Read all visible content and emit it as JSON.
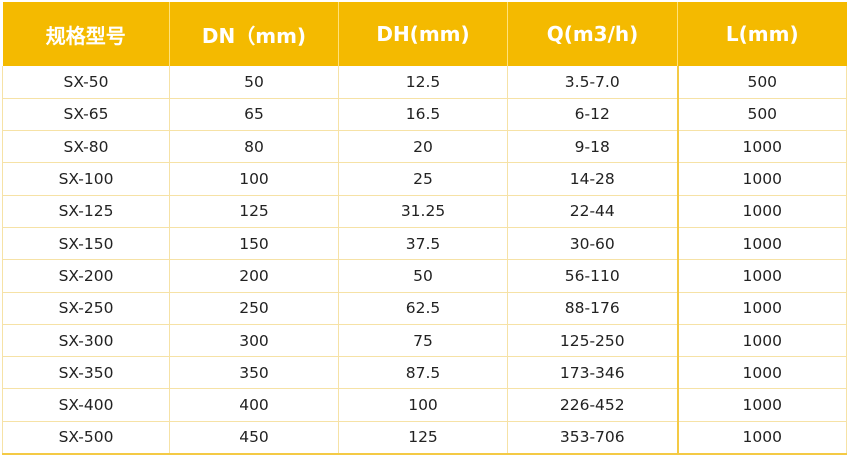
{
  "table": {
    "headers": [
      "规格型号",
      "DN（mm)",
      "DH(mm)",
      "Q(m3/h)",
      "L(mm)"
    ],
    "rows": [
      [
        "SX-50",
        "50",
        "12.5",
        "3.5-7.0",
        "500"
      ],
      [
        "SX-65",
        "65",
        "16.5",
        "6-12",
        "500"
      ],
      [
        "SX-80",
        "80",
        "20",
        "9-18",
        "1000"
      ],
      [
        "SX-100",
        "100",
        "25",
        "14-28",
        "1000"
      ],
      [
        "SX-125",
        "125",
        "31.25",
        "22-44",
        "1000"
      ],
      [
        "SX-150",
        "150",
        "37.5",
        "30-60",
        "1000"
      ],
      [
        "SX-200",
        "200",
        "50",
        "56-110",
        "1000"
      ],
      [
        "SX-250",
        "250",
        "62.5",
        "88-176",
        "1000"
      ],
      [
        "SX-300",
        "300",
        "75",
        "125-250",
        "1000"
      ],
      [
        "SX-350",
        "350",
        "87.5",
        "173-346",
        "1000"
      ],
      [
        "SX-400",
        "400",
        "100",
        "226-452",
        "1000"
      ],
      [
        "SX-500",
        "450",
        "125",
        "353-706",
        "1000"
      ]
    ]
  },
  "colors": {
    "header_background": "#f4ba00",
    "header_text": "#ffffff",
    "grid_line": "#f6e2a6",
    "body_text": "#222222"
  }
}
